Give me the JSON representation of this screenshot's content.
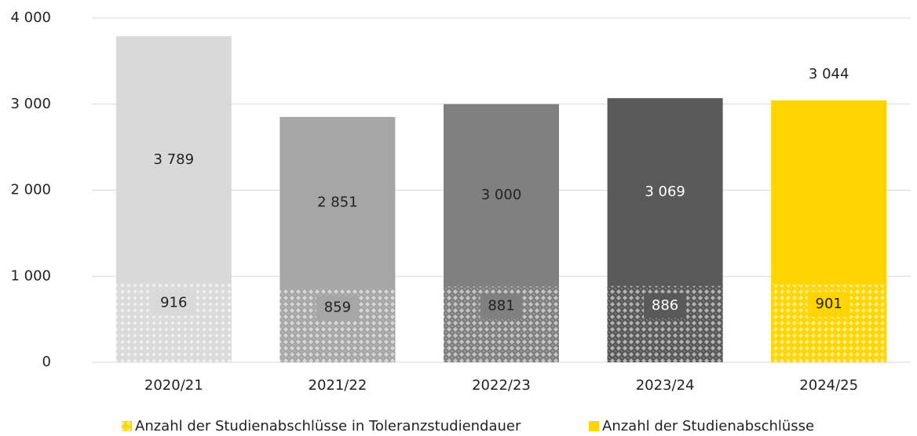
{
  "chart_data": {
    "type": "bar",
    "categories": [
      "2020/21",
      "2021/22",
      "2022/23",
      "2023/24",
      "2024/25"
    ],
    "series": [
      {
        "name": "Anzahl der Studienabschlüsse in Toleranzstudiendauer",
        "pattern": "crosshatch",
        "colors": [
          "#d9d9d9",
          "#a6a6a6",
          "#808080",
          "#595959",
          "#ffd500"
        ],
        "values": [
          916,
          859,
          881,
          886,
          901
        ]
      },
      {
        "name": "Anzahl der Studienabschlüsse",
        "colors": [
          "#d9d9d9",
          "#a6a6a6",
          "#808080",
          "#595959",
          "#ffd500"
        ],
        "values": [
          3789,
          2851,
          3000,
          3069,
          3044
        ],
        "value_labels": [
          "3 789",
          "2 851",
          "3 000",
          "3 069",
          "3 044"
        ],
        "label_position": [
          "center",
          "center",
          "center",
          "center",
          "outside_end"
        ]
      }
    ],
    "overlap": true,
    "ylim": [
      0,
      4000
    ],
    "yticks": [
      0,
      {
        "value": 1000,
        "label": "1 000"
      },
      {
        "value": 2000,
        "label": "2 000"
      },
      {
        "value": 3000,
        "label": "3 000"
      },
      {
        "value": 4000,
        "label": "4 000"
      }
    ],
    "grid": true,
    "legend": "bottom"
  }
}
